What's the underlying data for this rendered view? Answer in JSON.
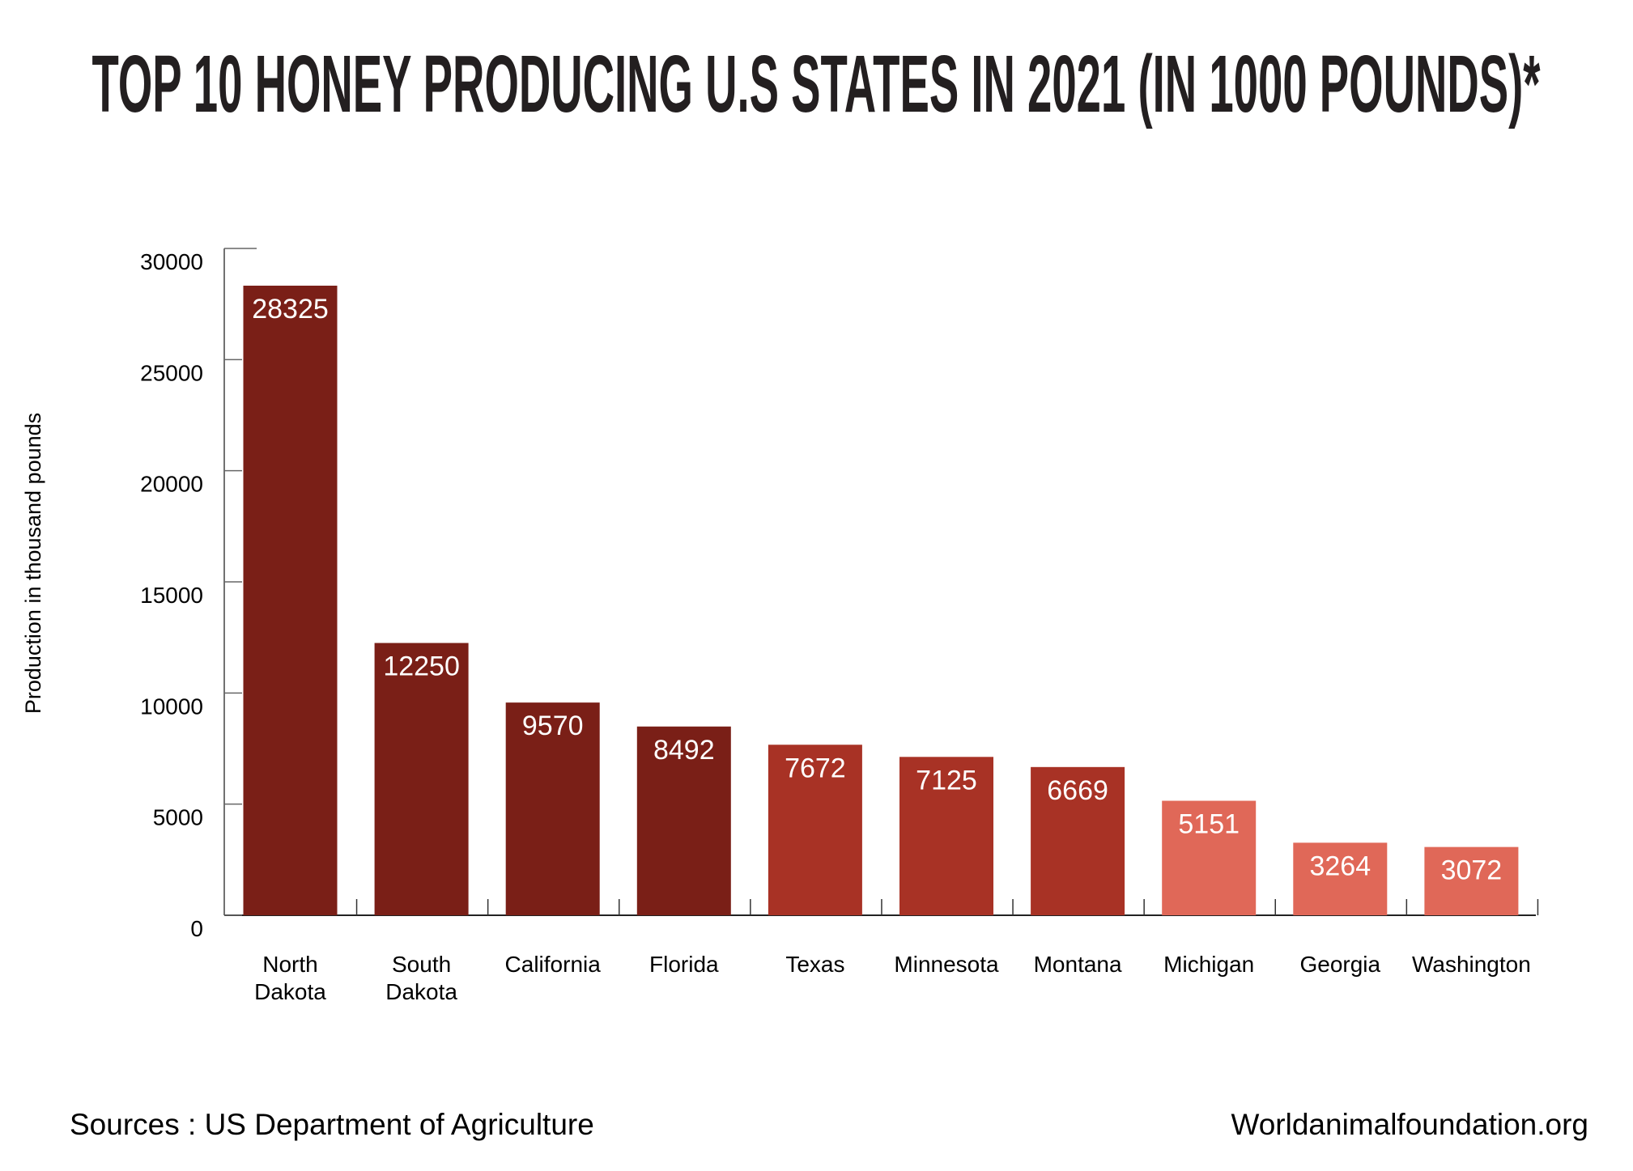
{
  "title": "TOP 10 HONEY PRODUCING U.S STATES IN 2021 (IN 1000 POUNDS)*",
  "footer": {
    "source": "Sources : US Department of Agriculture",
    "website": "Worldanimalfoundation.org"
  },
  "chart_data": {
    "type": "bar",
    "title": "TOP 10 HONEY PRODUCING U.S STATES IN 2021 (IN 1000 POUNDS)*",
    "xlabel": "",
    "ylabel": "Production in thousand pounds",
    "ylim": [
      0,
      30000
    ],
    "yticks": [
      0,
      5000,
      10000,
      15000,
      20000,
      25000,
      30000
    ],
    "grid": false,
    "categories": [
      [
        "North",
        "Dakota"
      ],
      [
        "South",
        "Dakota"
      ],
      [
        "California"
      ],
      [
        "Florida"
      ],
      [
        "Texas"
      ],
      [
        "Minnesota"
      ],
      [
        "Montana"
      ],
      [
        "Michigan"
      ],
      [
        "Georgia"
      ],
      [
        "Washington"
      ]
    ],
    "values": [
      28325,
      12250,
      9570,
      8492,
      7672,
      7125,
      6669,
      5151,
      3264,
      3072
    ],
    "data_labels": [
      "28325",
      "12250",
      "9570",
      "8492",
      "7672",
      "7125",
      "6669",
      "5151",
      "3264",
      "3072"
    ],
    "colors": [
      "#7a1f17",
      "#7a1f17",
      "#7a1f17",
      "#7a1f17",
      "#a83225",
      "#a83225",
      "#a83225",
      "#e06858",
      "#e06858",
      "#e06858"
    ]
  }
}
